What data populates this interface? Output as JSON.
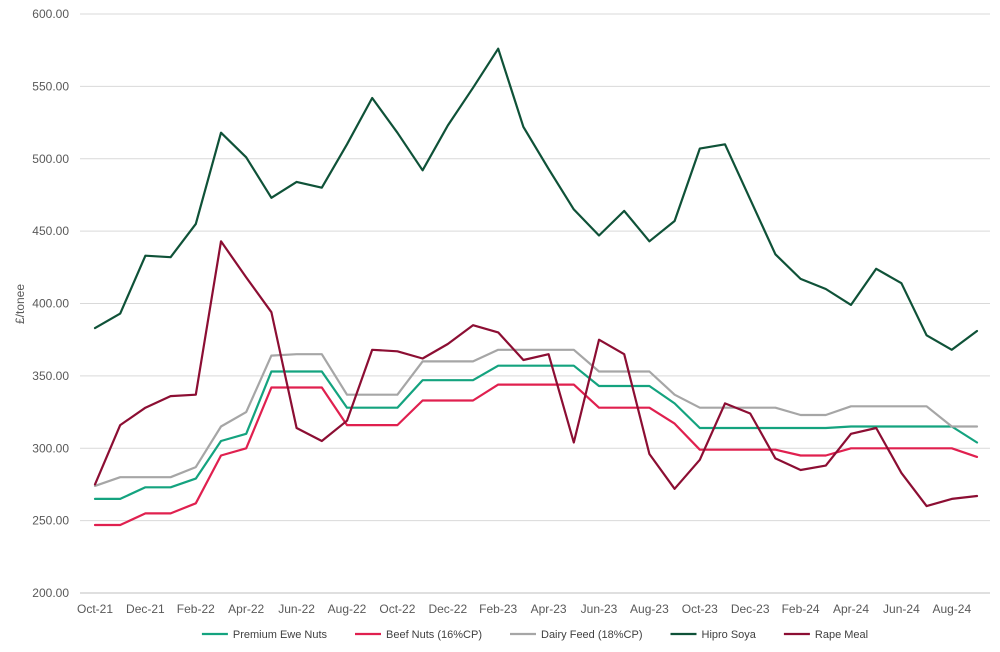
{
  "chart_data": {
    "type": "line",
    "title": "",
    "xlabel": "",
    "ylabel": "£/tonee",
    "ylim": [
      200,
      600
    ],
    "yticks": [
      "200.00",
      "250.00",
      "300.00",
      "350.00",
      "400.00",
      "450.00",
      "500.00",
      "550.00",
      "600.00"
    ],
    "x_tick_labels": [
      "Oct-21",
      "Dec-21",
      "Feb-22",
      "Apr-22",
      "Jun-22",
      "Aug-22",
      "Oct-22",
      "Dec-22",
      "Feb-23",
      "Apr-23",
      "Jun-23",
      "Aug-23",
      "Oct-23",
      "Dec-23",
      "Feb-24",
      "Apr-24",
      "Jun-24",
      "Aug-24"
    ],
    "categories": [
      "Oct-21",
      "Nov-21",
      "Dec-21",
      "Jan-22",
      "Feb-22",
      "Mar-22",
      "Apr-22",
      "May-22",
      "Jun-22",
      "Jul-22",
      "Aug-22",
      "Sep-22",
      "Oct-22",
      "Nov-22",
      "Dec-22",
      "Jan-23",
      "Feb-23",
      "Mar-23",
      "Apr-23",
      "May-23",
      "Jun-23",
      "Jul-23",
      "Aug-23",
      "Sep-23",
      "Oct-23",
      "Nov-23",
      "Dec-23",
      "Jan-24",
      "Feb-24",
      "Mar-24",
      "Apr-24",
      "May-24",
      "Jun-24",
      "Jul-24",
      "Aug-24",
      "Sep-24"
    ],
    "grid": true,
    "legend_position": "bottom",
    "series": [
      {
        "name": "Premium Ewe Nuts",
        "color": "#14a37f",
        "values": [
          265,
          265,
          273,
          273,
          279,
          305,
          310,
          353,
          353,
          353,
          328,
          328,
          328,
          347,
          347,
          347,
          357,
          357,
          357,
          357,
          343,
          343,
          343,
          331,
          314,
          314,
          314,
          314,
          314,
          314,
          315,
          315,
          315,
          315,
          315,
          304
        ]
      },
      {
        "name": "Beef Nuts (16%CP)",
        "color": "#e0204f",
        "values": [
          247,
          247,
          255,
          255,
          262,
          295,
          300,
          342,
          342,
          342,
          316,
          316,
          316,
          333,
          333,
          333,
          344,
          344,
          344,
          344,
          328,
          328,
          328,
          317,
          299,
          299,
          299,
          299,
          295,
          295,
          300,
          300,
          300,
          300,
          300,
          294
        ]
      },
      {
        "name": "Dairy Feed (18%CP)",
        "color": "#a6a6a6",
        "values": [
          274,
          280,
          280,
          280,
          287,
          315,
          325,
          364,
          365,
          365,
          337,
          337,
          337,
          360,
          360,
          360,
          368,
          368,
          368,
          368,
          353,
          353,
          353,
          337,
          328,
          328,
          328,
          328,
          323,
          323,
          329,
          329,
          329,
          329,
          315,
          315
        ]
      },
      {
        "name": "Hipro Soya",
        "color": "#0f5238",
        "values": [
          383,
          393,
          433,
          432,
          455,
          518,
          501,
          473,
          484,
          480,
          510,
          542,
          518,
          492,
          523,
          549,
          576,
          522,
          493,
          465,
          447,
          464,
          443,
          457,
          507,
          510,
          472,
          434,
          417,
          410,
          399,
          424,
          414,
          378,
          368,
          381
        ]
      },
      {
        "name": "Rape Meal",
        "color": "#8c0e33",
        "values": [
          275,
          316,
          328,
          336,
          337,
          443,
          418,
          394,
          314,
          305,
          319,
          368,
          367,
          362,
          372,
          385,
          380,
          361,
          365,
          304,
          375,
          365,
          296,
          272,
          292,
          331,
          324,
          293,
          285,
          288,
          310,
          314,
          283,
          260,
          265,
          267
        ]
      }
    ]
  }
}
